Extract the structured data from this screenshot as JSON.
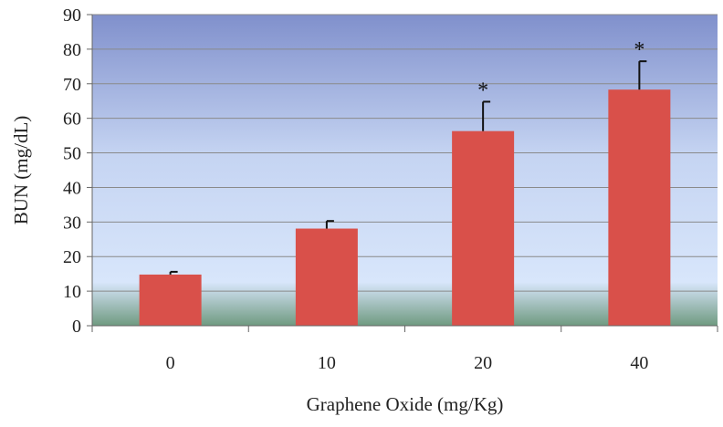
{
  "chart_data": {
    "type": "bar",
    "title": "",
    "xlabel": "Graphene Oxide (mg/Kg)",
    "ylabel": "BUN  (mg/dL)",
    "categories": [
      "0",
      "10",
      "20",
      "40"
    ],
    "values": [
      14.8,
      28.1,
      56.3,
      68.3
    ],
    "error_plus": [
      0.8,
      2.2,
      8.5,
      8.2
    ],
    "annotations": [
      "",
      "",
      "*",
      "*"
    ],
    "ylim": [
      0,
      90
    ],
    "yticks": [
      "0",
      "10",
      "20",
      "30",
      "40",
      "50",
      "60",
      "70",
      "80",
      "90"
    ],
    "grid": true,
    "legend": "none",
    "bar_color": "#d9504a",
    "error_bar_color": "#111111",
    "background_gradient": [
      "#8090cc",
      "#c5d4f2",
      "#d8e6fb",
      "#6f9a80"
    ]
  }
}
